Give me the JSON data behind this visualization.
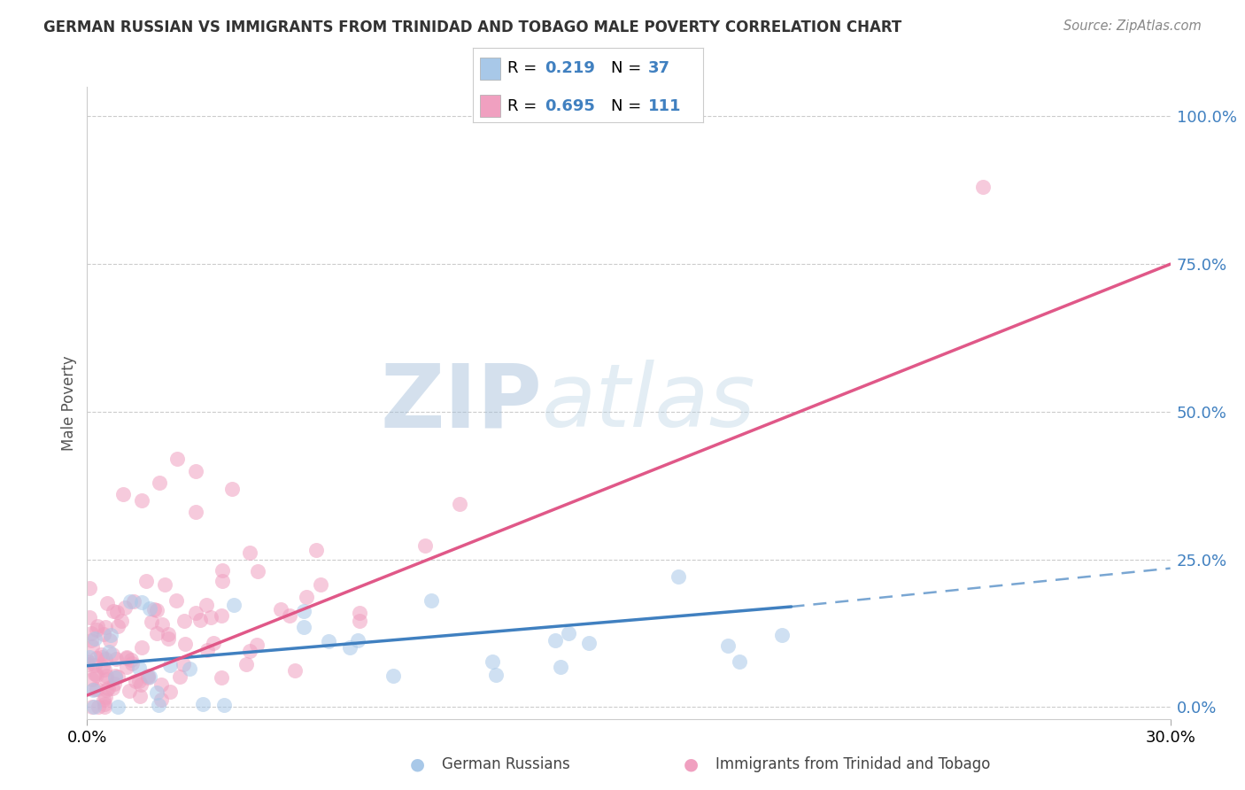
{
  "title": "GERMAN RUSSIAN VS IMMIGRANTS FROM TRINIDAD AND TOBAGO MALE POVERTY CORRELATION CHART",
  "source": "Source: ZipAtlas.com",
  "ylabel": "Male Poverty",
  "right_yticks": [
    "100.0%",
    "75.0%",
    "50.0%",
    "25.0%",
    "0.0%"
  ],
  "right_ytick_vals": [
    1.0,
    0.75,
    0.5,
    0.25,
    0.0
  ],
  "watermark_text": "ZIPatlas",
  "blue_color": "#a8c8e8",
  "pink_color": "#f0a0c0",
  "blue_line_color": "#4080c0",
  "pink_line_color": "#e05888",
  "xmin": 0.0,
  "xmax": 0.3,
  "ymin": -0.02,
  "ymax": 1.05,
  "xtick_labels": [
    "0.0%",
    "30.0%"
  ],
  "xtick_vals": [
    0.0,
    0.3
  ],
  "legend_label1": "German Russians",
  "legend_label2": "Immigrants from Trinidad and Tobago",
  "blue_solid_line": [
    [
      0.0,
      0.07
    ],
    [
      0.195,
      0.17
    ]
  ],
  "blue_dashed_line": [
    [
      0.195,
      0.17
    ],
    [
      0.3,
      0.235
    ]
  ],
  "pink_solid_line": [
    [
      0.0,
      0.02
    ],
    [
      0.3,
      0.75
    ]
  ]
}
